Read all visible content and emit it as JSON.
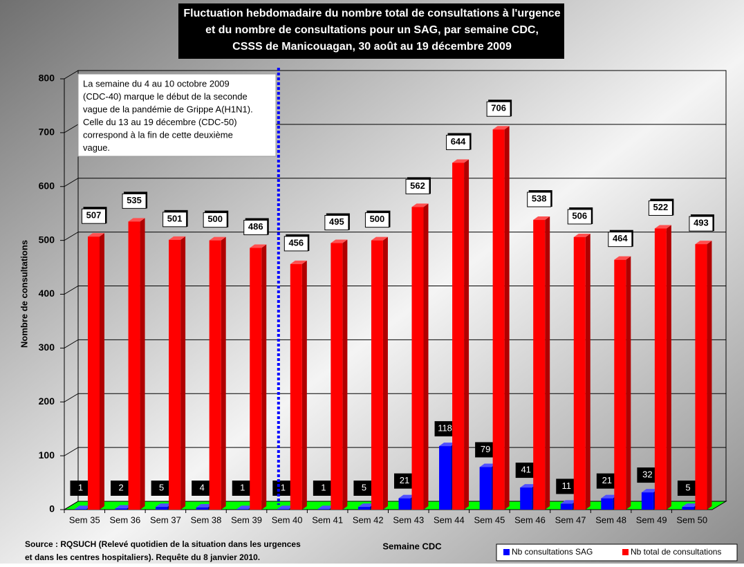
{
  "chart_data": {
    "type": "bar3d",
    "title": [
      "Fluctuation hebdomadaire du nombre total de consultations à l'urgence",
      "et du nombre de consultations pour un SAG, par semaine CDC,",
      "CSSS de Manicouagan, 30 août au 19 décembre 2009"
    ],
    "y_label": "Nombre de consultations",
    "x_label": "Semaine CDC",
    "annotation": [
      "La semaine du 4 au 10 octobre 2009",
      "(CDC-40) marque le début de la seconde",
      "vague de la pandémie de Grippe A(H1N1).",
      "Celle du 13 au 19 décembre (CDC-50)",
      "correspond à la fin de cette deuxième",
      "vague."
    ],
    "source": [
      "Source : RQSUCH (Relevé quotidien de la situation dans les urgences",
      "et dans les centres hospitaliers).  Requête du 8 janvier 2010."
    ],
    "categories": [
      "Sem 35",
      "Sem 36",
      "Sem 37",
      "Sem 38",
      "Sem 39",
      "Sem 40",
      "Sem 41",
      "Sem 42",
      "Sem 43",
      "Sem 44",
      "Sem 45",
      "Sem 46",
      "Sem 47",
      "Sem 48",
      "Sem 49",
      "Sem 50"
    ],
    "series": [
      {
        "name": "Nb consultations SAG",
        "color": "#0000ff",
        "values": [
          1,
          2,
          5,
          4,
          1,
          1,
          1,
          5,
          21,
          118,
          79,
          41,
          11,
          21,
          32,
          5
        ]
      },
      {
        "name": "Nb total de consultations",
        "color": "#ff0000",
        "values": [
          507,
          535,
          501,
          500,
          486,
          456,
          495,
          500,
          562,
          644,
          706,
          538,
          506,
          464,
          522,
          493
        ]
      }
    ],
    "ylim": [
      0,
      800
    ],
    "yticks": [
      0,
      100,
      200,
      300,
      400,
      500,
      600,
      700,
      800
    ],
    "grid": true,
    "legend": "bottom-right"
  }
}
